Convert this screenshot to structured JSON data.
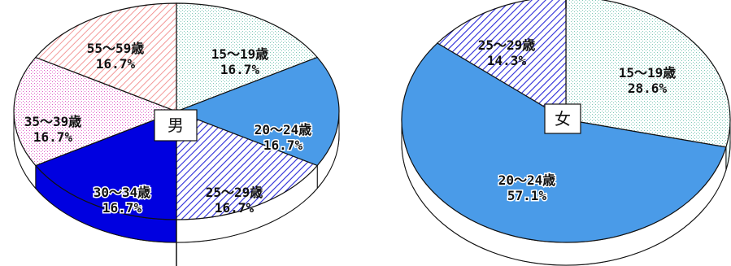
{
  "chart_data": [
    {
      "type": "pie",
      "center_label": "男",
      "categories": [
        "15～19歳",
        "20～24歳",
        "25～29歳",
        "30～34歳",
        "35～39歳",
        "55～59歳"
      ],
      "values": [
        16.7,
        16.7,
        16.7,
        16.7,
        16.7,
        16.7
      ],
      "labels": [
        "16.7%",
        "16.7%",
        "16.7%",
        "16.7%",
        "16.7%",
        "16.7%"
      ],
      "colors": [
        "#e8f8f4",
        "#4a9be8",
        "#c8c8f8",
        "#0000e0",
        "#fae0f4",
        "#fce4e4"
      ]
    },
    {
      "type": "pie",
      "center_label": "女",
      "categories": [
        "15～19歳",
        "20～24歳",
        "25～29歳"
      ],
      "values": [
        28.6,
        57.1,
        14.3
      ],
      "labels": [
        "28.6%",
        "57.1%",
        "14.3%"
      ],
      "colors": [
        "#e8f8f4",
        "#4a9be8",
        "#c8c8f8"
      ]
    }
  ]
}
